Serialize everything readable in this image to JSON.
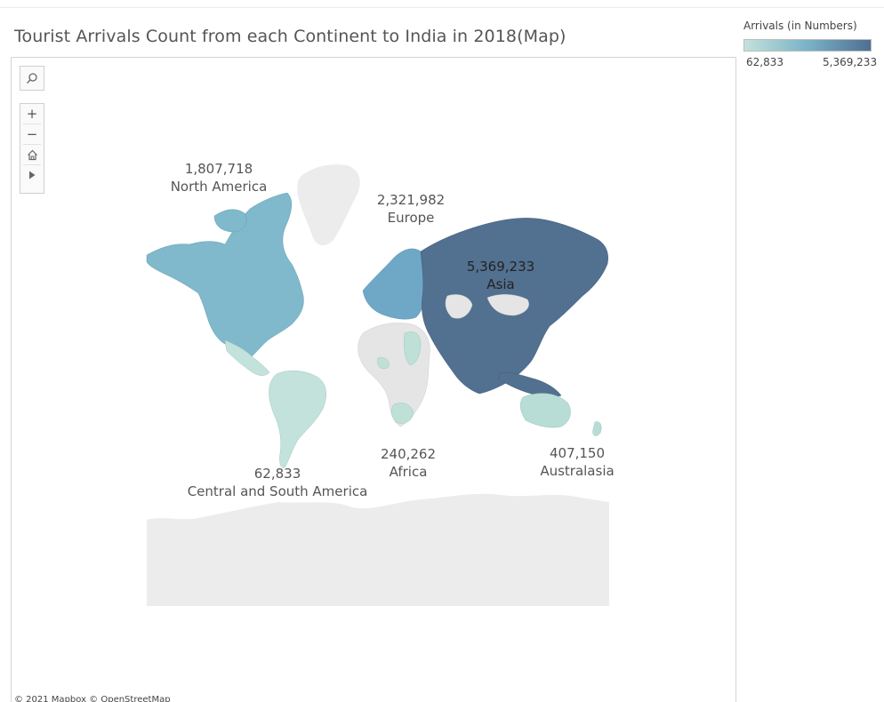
{
  "title": "Tourist Arrivals Count from each Continent to India in 2018(Map)",
  "controls": {
    "search_icon": "search-icon",
    "zoom_in": "+",
    "zoom_out": "−",
    "home_icon": "home-icon",
    "pan_icon": "play-icon"
  },
  "attribution": "© 2021 Mapbox  © OpenStreetMap",
  "legend": {
    "title": "Arrivals (in Numbers)",
    "min_label": "62,833",
    "max_label": "5,369,233",
    "color_low": "#c3e2dc",
    "color_high": "#4f6e92"
  },
  "regions": [
    {
      "name": "North America",
      "value_label": "1,807,718",
      "color": "#7fb9cb"
    },
    {
      "name": "Europe",
      "value_label": "2,321,982",
      "color": "#6fa8c6"
    },
    {
      "name": "Asia",
      "value_label": "5,369,233",
      "color": "#52708f"
    },
    {
      "name": "Central and South America",
      "value_label": "62,833",
      "color": "#c3e2dc"
    },
    {
      "name": "Africa",
      "value_label": "240,262",
      "color": "#bfe0d6"
    },
    {
      "name": "Australasia",
      "value_label": "407,150",
      "color": "#b7ddd6"
    }
  ],
  "colors": {
    "no_data": "#e5e5e5",
    "land_other": "#ececec",
    "map_bg": "#ffffff"
  }
}
